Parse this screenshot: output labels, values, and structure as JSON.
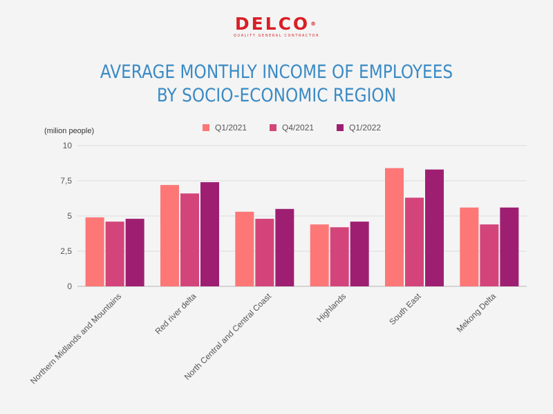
{
  "logo": {
    "text": "DELCO",
    "registered": "®",
    "tagline": "QUALITY GENERAL CONTRACTOR"
  },
  "title_lines": [
    "AVERAGE MONTHLY INCOME OF EMPLOYEES",
    "BY SOCIO-ECONOMIC REGION"
  ],
  "colors": {
    "background": "#f4f4f4",
    "title": "#3a8ac4",
    "logo": "#d81f26"
  },
  "chart_data": {
    "type": "bar",
    "unit_label": "(milion people)",
    "categories": [
      "Northern Midlands and Mountains",
      "Red river delta",
      "North Central and Central Coast",
      "Highlands",
      "South East",
      "Mekong Delta"
    ],
    "series": [
      {
        "name": "Q1/2021",
        "color": "#fd7777",
        "values": [
          4.9,
          7.2,
          5.3,
          4.4,
          8.4,
          5.6
        ]
      },
      {
        "name": "Q4/2021",
        "color": "#d3457a",
        "values": [
          4.6,
          6.6,
          4.8,
          4.2,
          6.3,
          4.4
        ]
      },
      {
        "name": "Q1/2022",
        "color": "#9e1f72",
        "values": [
          4.8,
          7.4,
          5.5,
          4.6,
          8.3,
          5.6
        ]
      }
    ],
    "y_ticks": [
      "0",
      "2,5",
      "5",
      "7,5",
      "10"
    ],
    "y_tick_values": [
      0,
      2.5,
      5,
      7.5,
      10
    ],
    "ylim": [
      0,
      10
    ],
    "grid": true,
    "legend_position": "top-center"
  }
}
